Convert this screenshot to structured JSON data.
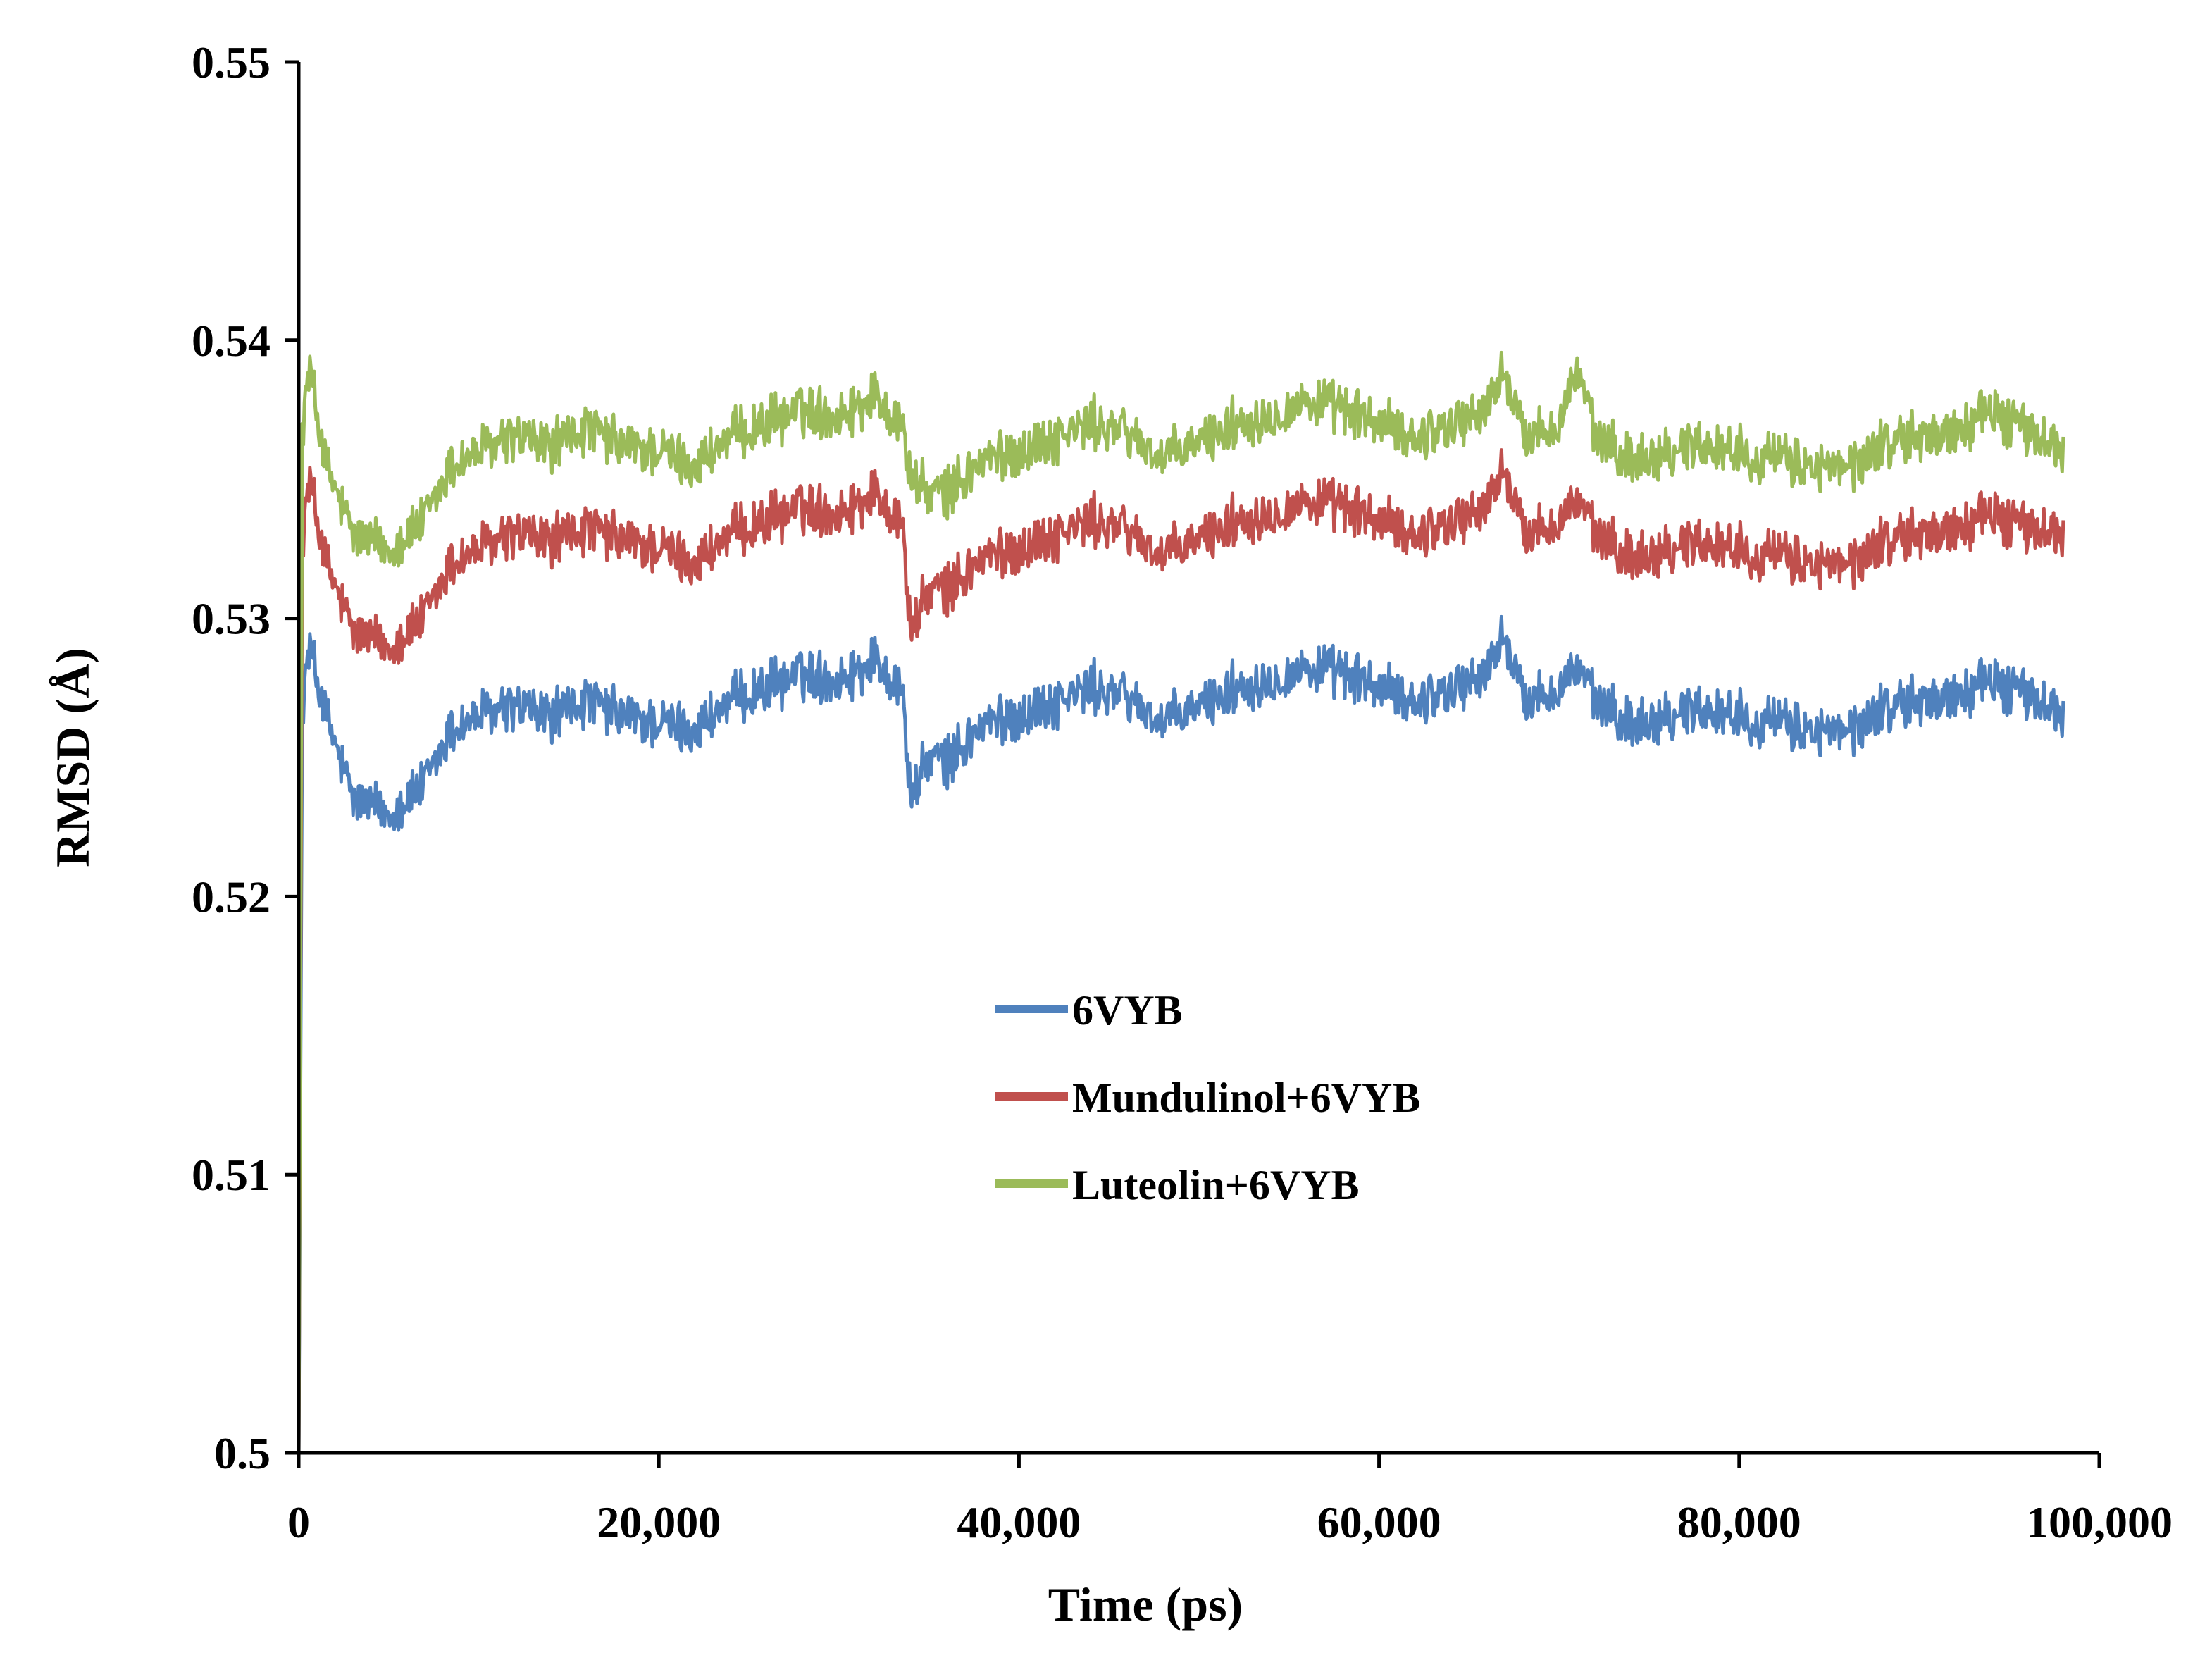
{
  "chart_data": {
    "type": "line",
    "title": "",
    "xlabel": "Time (ps)",
    "ylabel": "RMSD (Å)",
    "xlim": [
      0,
      100000
    ],
    "ylim": [
      0.5,
      0.55
    ],
    "grid": false,
    "legend_position": "center",
    "x_ticks": [
      0,
      20000,
      40000,
      60000,
      80000,
      100000
    ],
    "x_tick_labels": [
      "0",
      "20,000",
      "40,000",
      "60,000",
      "80,000",
      "100,000"
    ],
    "y_ticks": [
      0.5,
      0.51,
      0.52,
      0.53,
      0.54,
      0.55
    ],
    "y_tick_labels": [
      "0.5",
      "0.51",
      "0.52",
      "0.53",
      "0.54",
      "0.55"
    ],
    "series": [
      {
        "name": "6VYB",
        "color": "#4F81BD",
        "points": [
          [
            0,
            0.5
          ],
          [
            200,
            0.527
          ],
          [
            600,
            0.529
          ],
          [
            1500,
            0.5265
          ],
          [
            3000,
            0.5235
          ],
          [
            5000,
            0.523
          ],
          [
            7000,
            0.524
          ],
          [
            8500,
            0.526
          ],
          [
            10000,
            0.5265
          ],
          [
            12000,
            0.5268
          ],
          [
            14000,
            0.5265
          ],
          [
            16000,
            0.527
          ],
          [
            18000,
            0.5265
          ],
          [
            20000,
            0.5262
          ],
          [
            22000,
            0.526
          ],
          [
            24000,
            0.527
          ],
          [
            26000,
            0.5275
          ],
          [
            28000,
            0.528
          ],
          [
            30000,
            0.5278
          ],
          [
            32000,
            0.5285
          ],
          [
            33500,
            0.5275
          ],
          [
            34000,
            0.5235
          ],
          [
            35000,
            0.525
          ],
          [
            36000,
            0.5248
          ],
          [
            38000,
            0.5262
          ],
          [
            40000,
            0.5265
          ],
          [
            42000,
            0.527
          ],
          [
            44000,
            0.5275
          ],
          [
            46000,
            0.5272
          ],
          [
            48000,
            0.5262
          ],
          [
            50000,
            0.5268
          ],
          [
            52000,
            0.5275
          ],
          [
            54000,
            0.5278
          ],
          [
            56000,
            0.5282
          ],
          [
            58000,
            0.528
          ],
          [
            60000,
            0.5275
          ],
          [
            62000,
            0.527
          ],
          [
            64000,
            0.5275
          ],
          [
            66000,
            0.528
          ],
          [
            67000,
            0.5295
          ],
          [
            68000,
            0.527
          ],
          [
            70000,
            0.5275
          ],
          [
            71000,
            0.5283
          ],
          [
            72000,
            0.527
          ],
          [
            74000,
            0.5262
          ],
          [
            76000,
            0.5265
          ],
          [
            78000,
            0.5268
          ],
          [
            80000,
            0.5265
          ],
          [
            82000,
            0.5262
          ],
          [
            84000,
            0.526
          ],
          [
            86000,
            0.5258
          ],
          [
            88000,
            0.5268
          ],
          [
            90000,
            0.527
          ],
          [
            92000,
            0.5272
          ],
          [
            94000,
            0.5278
          ],
          [
            96000,
            0.5272
          ],
          [
            98000,
            0.5265
          ]
        ]
      },
      {
        "name": "Mundulinol+6VYB",
        "color": "#C0504D",
        "points": [
          [
            0,
            0.5
          ],
          [
            200,
            0.533
          ],
          [
            600,
            0.535
          ],
          [
            1500,
            0.532
          ],
          [
            3000,
            0.5295
          ],
          [
            5000,
            0.529
          ],
          [
            7000,
            0.53
          ],
          [
            8500,
            0.532
          ],
          [
            10000,
            0.5325
          ],
          [
            12000,
            0.533
          ],
          [
            14000,
            0.5328
          ],
          [
            16000,
            0.5332
          ],
          [
            18000,
            0.5328
          ],
          [
            20000,
            0.5325
          ],
          [
            22000,
            0.532
          ],
          [
            24000,
            0.533
          ],
          [
            26000,
            0.5335
          ],
          [
            28000,
            0.534
          ],
          [
            30000,
            0.5338
          ],
          [
            32000,
            0.5345
          ],
          [
            33500,
            0.5335
          ],
          [
            34000,
            0.5295
          ],
          [
            35000,
            0.531
          ],
          [
            36000,
            0.531
          ],
          [
            38000,
            0.5322
          ],
          [
            40000,
            0.5325
          ],
          [
            42000,
            0.533
          ],
          [
            44000,
            0.5335
          ],
          [
            46000,
            0.5332
          ],
          [
            48000,
            0.5322
          ],
          [
            50000,
            0.5328
          ],
          [
            52000,
            0.5335
          ],
          [
            54000,
            0.5338
          ],
          [
            56000,
            0.5342
          ],
          [
            58000,
            0.534
          ],
          [
            60000,
            0.5335
          ],
          [
            62000,
            0.533
          ],
          [
            64000,
            0.5335
          ],
          [
            66000,
            0.534
          ],
          [
            67000,
            0.5355
          ],
          [
            68000,
            0.533
          ],
          [
            70000,
            0.5335
          ],
          [
            71000,
            0.5343
          ],
          [
            72000,
            0.533
          ],
          [
            74000,
            0.5322
          ],
          [
            76000,
            0.5325
          ],
          [
            78000,
            0.5328
          ],
          [
            80000,
            0.5325
          ],
          [
            82000,
            0.5322
          ],
          [
            84000,
            0.532
          ],
          [
            86000,
            0.5318
          ],
          [
            88000,
            0.5328
          ],
          [
            90000,
            0.533
          ],
          [
            92000,
            0.5332
          ],
          [
            94000,
            0.5338
          ],
          [
            96000,
            0.5332
          ],
          [
            98000,
            0.533
          ]
        ]
      },
      {
        "name": "Luteolin+6VYB",
        "color": "#9BBB59",
        "points": [
          [
            0,
            0.5
          ],
          [
            200,
            0.537
          ],
          [
            600,
            0.539
          ],
          [
            1500,
            0.5355
          ],
          [
            3000,
            0.533
          ],
          [
            5000,
            0.5325
          ],
          [
            7000,
            0.5335
          ],
          [
            8500,
            0.5355
          ],
          [
            10000,
            0.536
          ],
          [
            12000,
            0.5365
          ],
          [
            14000,
            0.5362
          ],
          [
            16000,
            0.5368
          ],
          [
            18000,
            0.5362
          ],
          [
            20000,
            0.536
          ],
          [
            22000,
            0.5355
          ],
          [
            24000,
            0.5365
          ],
          [
            26000,
            0.537
          ],
          [
            28000,
            0.5375
          ],
          [
            30000,
            0.5373
          ],
          [
            32000,
            0.538
          ],
          [
            33500,
            0.537
          ],
          [
            34000,
            0.535
          ],
          [
            35000,
            0.5345
          ],
          [
            36000,
            0.5345
          ],
          [
            38000,
            0.5357
          ],
          [
            40000,
            0.536
          ],
          [
            42000,
            0.5365
          ],
          [
            44000,
            0.537
          ],
          [
            46000,
            0.5367
          ],
          [
            48000,
            0.5357
          ],
          [
            50000,
            0.5363
          ],
          [
            52000,
            0.537
          ],
          [
            54000,
            0.5373
          ],
          [
            56000,
            0.5378
          ],
          [
            58000,
            0.5375
          ],
          [
            60000,
            0.537
          ],
          [
            62000,
            0.5365
          ],
          [
            64000,
            0.537
          ],
          [
            66000,
            0.5375
          ],
          [
            67000,
            0.539
          ],
          [
            68000,
            0.5365
          ],
          [
            70000,
            0.537
          ],
          [
            71000,
            0.539
          ],
          [
            72000,
            0.5365
          ],
          [
            74000,
            0.5357
          ],
          [
            76000,
            0.536
          ],
          [
            78000,
            0.5363
          ],
          [
            80000,
            0.536
          ],
          [
            82000,
            0.5357
          ],
          [
            84000,
            0.5355
          ],
          [
            86000,
            0.5353
          ],
          [
            88000,
            0.5363
          ],
          [
            90000,
            0.5365
          ],
          [
            92000,
            0.5367
          ],
          [
            94000,
            0.5375
          ],
          [
            96000,
            0.5367
          ],
          [
            98000,
            0.536
          ]
        ]
      }
    ]
  }
}
